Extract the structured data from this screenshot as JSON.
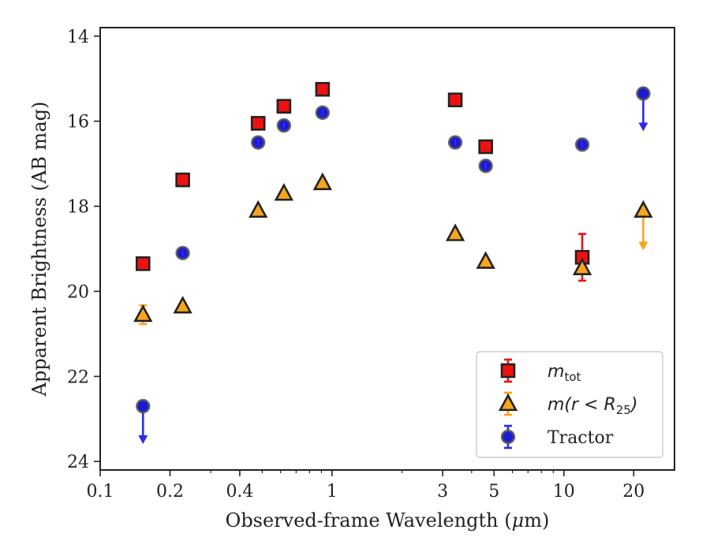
{
  "chart_data": {
    "type": "scatter",
    "xlabel_prefix": "Observed-frame Wavelength (",
    "xlabel_mu": "μ",
    "xlabel_suffix": "m)",
    "ylabel": "Apparent Brightness (AB mag)",
    "xscale": "log",
    "xlim": [
      0.1,
      30
    ],
    "ylim": [
      24.2,
      13.8
    ],
    "y_inverted": true,
    "grid": false,
    "legend_position": "lower-right",
    "x_ticks": [
      {
        "value": 0.1,
        "label": "0.1"
      },
      {
        "value": 0.2,
        "label": "0.2"
      },
      {
        "value": 0.4,
        "label": "0.4"
      },
      {
        "value": 1,
        "label": "1"
      },
      {
        "value": 3,
        "label": "3"
      },
      {
        "value": 5,
        "label": "5"
      },
      {
        "value": 10,
        "label": "10"
      },
      {
        "value": 20,
        "label": "20"
      }
    ],
    "y_ticks": [
      {
        "value": 14,
        "label": "14"
      },
      {
        "value": 16,
        "label": "16"
      },
      {
        "value": 18,
        "label": "18"
      },
      {
        "value": 20,
        "label": "20"
      },
      {
        "value": 22,
        "label": "22"
      },
      {
        "value": 24,
        "label": "24"
      }
    ],
    "series": [
      {
        "name": "m_tot",
        "legend_main": "m",
        "legend_sub": "tot",
        "marker": "square",
        "color": "#ee1111",
        "errcolor": "#ee1111",
        "points": [
          {
            "x": 0.153,
            "y": 19.35
          },
          {
            "x": 0.227,
            "y": 17.38
          },
          {
            "x": 0.48,
            "y": 16.05
          },
          {
            "x": 0.62,
            "y": 15.65
          },
          {
            "x": 0.91,
            "y": 15.25
          },
          {
            "x": 3.4,
            "y": 15.5
          },
          {
            "x": 4.6,
            "y": 16.6
          },
          {
            "x": 12.0,
            "y": 19.2,
            "err": 0.55
          }
        ]
      },
      {
        "name": "m(r < R_25)",
        "legend_main": "m(r < R",
        "legend_sub": "25",
        "legend_tail": ")",
        "marker": "triangle",
        "color": "#f8a51c",
        "errcolor": "#f8a51c",
        "points": [
          {
            "x": 0.153,
            "y": 20.55,
            "err": 0.22
          },
          {
            "x": 0.227,
            "y": 20.35
          },
          {
            "x": 0.48,
            "y": 18.1
          },
          {
            "x": 0.62,
            "y": 17.7
          },
          {
            "x": 0.91,
            "y": 17.45
          },
          {
            "x": 3.4,
            "y": 18.65
          },
          {
            "x": 4.6,
            "y": 19.3
          },
          {
            "x": 12.0,
            "y": 19.45
          },
          {
            "x": 22.0,
            "y": 18.1,
            "upper_limit": true,
            "arrow_to": 19.0
          }
        ]
      },
      {
        "name": "Tractor",
        "legend_main": "Tractor",
        "marker": "circle",
        "color": "#1a1ad6",
        "errcolor": "#2b2bee",
        "points": [
          {
            "x": 0.153,
            "y": 22.7,
            "upper_limit": true,
            "arrow_to": 23.55
          },
          {
            "x": 0.227,
            "y": 19.1
          },
          {
            "x": 0.48,
            "y": 16.5
          },
          {
            "x": 0.62,
            "y": 16.1
          },
          {
            "x": 0.91,
            "y": 15.8
          },
          {
            "x": 3.4,
            "y": 16.5
          },
          {
            "x": 4.6,
            "y": 17.05
          },
          {
            "x": 12.0,
            "y": 16.55
          },
          {
            "x": 22.0,
            "y": 15.35,
            "upper_limit": true,
            "arrow_to": 16.2
          }
        ]
      }
    ]
  }
}
